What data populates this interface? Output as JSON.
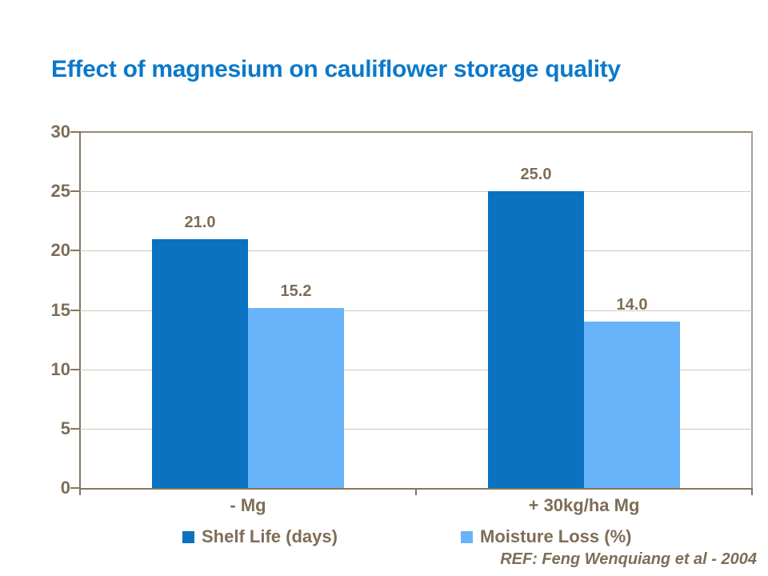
{
  "title": "Effect of magnesium on cauliflower storage quality",
  "footer": {
    "ref_text": "REF: Feng Wenquiang et al - 2004"
  },
  "colors": {
    "title_blue": "#0b79ca",
    "shelf_life_blue": "#0a72c0",
    "moisture_loss_blue": "#69b4f9",
    "axis_brown": "#86765f",
    "text_brown": "#7e6d58",
    "gridline_gray": "#cdc8c1"
  },
  "chart_data": {
    "type": "bar",
    "title": "Effect of magnesium on cauliflower storage quality",
    "categories": [
      "- Mg",
      "+ 30kg/ha Mg"
    ],
    "series": [
      {
        "name": "Shelf Life (days)",
        "color": "#0a72c0",
        "values": [
          21.0,
          25.0
        ],
        "data_labels": [
          "21.0",
          "25.0"
        ]
      },
      {
        "name": "Moisture Loss (%)",
        "color": "#69b4f9",
        "values": [
          15.2,
          14.0
        ],
        "data_labels": [
          "15.2",
          "14.0"
        ]
      }
    ],
    "xlabel": "",
    "ylabel": "",
    "ylim": [
      0,
      30
    ],
    "yticks": [
      0,
      5,
      10,
      15,
      20,
      25,
      30
    ],
    "grid": true,
    "value_labels": true,
    "legend_position": "bottom"
  }
}
